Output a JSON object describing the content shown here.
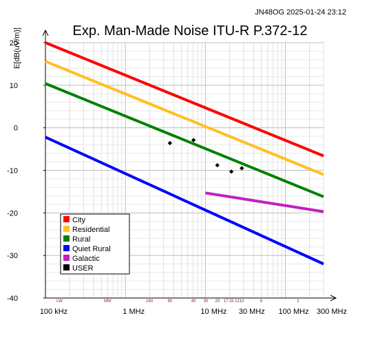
{
  "timestamp": "JN48OG 2025-01-24 23:12",
  "chart_data": {
    "type": "line",
    "title": "Exp. Man-Made Noise ITU-R P.372-12",
    "ylabel": "E[dB(uV/m)]",
    "xlabel": "",
    "xscale": "log",
    "xlim_mhz": [
      0.1,
      300
    ],
    "ylim": [
      -40,
      20
    ],
    "yticks": [
      20,
      10,
      0,
      -10,
      -20,
      -30,
      -40
    ],
    "xticks": [
      {
        "mhz": 0.1,
        "label": "100 kHz"
      },
      {
        "mhz": 1,
        "label": "1 MHz"
      },
      {
        "mhz": 10,
        "label": "10 MHz"
      },
      {
        "mhz": 30,
        "label": "30 MHz"
      },
      {
        "mhz": 100,
        "label": "100 MHz"
      },
      {
        "mhz": 300,
        "label": "300 MHz"
      }
    ],
    "band_labels": [
      {
        "mhz": 0.15,
        "label": "LW"
      },
      {
        "mhz": 0.6,
        "label": "MW"
      },
      {
        "mhz": 2.0,
        "label": "160"
      },
      {
        "mhz": 3.6,
        "label": "80"
      },
      {
        "mhz": 7.1,
        "label": "40"
      },
      {
        "mhz": 10.1,
        "label": "30"
      },
      {
        "mhz": 14.1,
        "label": "20"
      },
      {
        "mhz": 18.1,
        "label": "17"
      },
      {
        "mhz": 21.1,
        "label": "15"
      },
      {
        "mhz": 24.9,
        "label": "12"
      },
      {
        "mhz": 28.5,
        "label": "10"
      },
      {
        "mhz": 50,
        "label": "6"
      },
      {
        "mhz": 144,
        "label": "2"
      }
    ],
    "grid": true,
    "legend_position": "bottom-left",
    "series": [
      {
        "name": "City",
        "color": "#ff0000",
        "x": [
          0.1,
          300
        ],
        "y": [
          20,
          -6.6
        ]
      },
      {
        "name": "Residential",
        "color": "#ffc020",
        "x": [
          0.1,
          300
        ],
        "y": [
          15.6,
          -11
        ]
      },
      {
        "name": "Rural",
        "color": "#008000",
        "x": [
          0.1,
          300
        ],
        "y": [
          10.4,
          -16.2
        ]
      },
      {
        "name": "Quiet Rural",
        "color": "#0000ff",
        "x": [
          0.1,
          300
        ],
        "y": [
          -2.2,
          -32
        ]
      },
      {
        "name": "Galactic",
        "color": "#c020c0",
        "x": [
          10,
          300
        ],
        "y": [
          -15.3,
          -19.7
        ]
      },
      {
        "name": "USER",
        "color": "#000000",
        "type": "scatter",
        "x": [
          3.6,
          7.1,
          14.1,
          21.1,
          28.5
        ],
        "y": [
          -3.6,
          -2.9,
          -8.8,
          -10.3,
          -9.5
        ]
      }
    ]
  }
}
